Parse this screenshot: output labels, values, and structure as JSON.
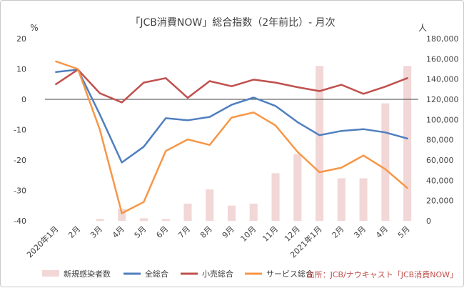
{
  "chart_data": {
    "type": "line",
    "title": "「JCB消費NOW」総合指数（2年前比）- 月次",
    "left_unit": "%",
    "right_unit": "人",
    "categories": [
      "2020年1月",
      "2月",
      "3月",
      "4月",
      "5月",
      "6月",
      "7月",
      "8月",
      "9月",
      "10月",
      "11月",
      "12月",
      "2021年1月",
      "2月",
      "3月",
      "4月",
      "5月"
    ],
    "ylim_left": [
      -40,
      20
    ],
    "yticks_left": [
      20,
      10,
      0,
      -10,
      -20,
      -30,
      -40
    ],
    "ylim_right": [
      0,
      180000
    ],
    "yticks_right": [
      "180,000",
      "160,000",
      "140,000",
      "120,000",
      "100,000",
      "80,000",
      "60,000",
      "40,000",
      "20,000",
      "0"
    ],
    "bars": {
      "name": "新規感染者数",
      "axis": "right",
      "color": "#f2d7d7",
      "values": [
        0,
        0,
        1800,
        12000,
        2500,
        1800,
        17000,
        31000,
        15000,
        17000,
        47000,
        66000,
        153000,
        42000,
        42000,
        116000,
        153000
      ]
    },
    "series": [
      {
        "name": "全総合",
        "color": "#4f7fbf",
        "values": [
          9.0,
          9.8,
          -5.0,
          -20.8,
          -15.6,
          -6.2,
          -6.9,
          -5.8,
          -1.8,
          0.6,
          -2.2,
          -7.5,
          -11.8,
          -10.4,
          -9.8,
          -10.9,
          -12.9
        ]
      },
      {
        "name": "小売総合",
        "color": "#c0504d",
        "values": [
          5.0,
          9.8,
          2.0,
          -1.0,
          5.5,
          7.0,
          0.5,
          6.0,
          4.3,
          6.5,
          5.5,
          4.0,
          2.7,
          4.8,
          1.8,
          4.2,
          7.0
        ]
      },
      {
        "name": "サービス総合",
        "color": "#f79646",
        "values": [
          12.5,
          10.0,
          -10.0,
          -37.5,
          -33.8,
          -17.0,
          -13.2,
          -15.0,
          -6.0,
          -4.3,
          -8.6,
          -17.3,
          -24.0,
          -22.5,
          -18.5,
          -23.0,
          -29.2
        ]
      }
    ],
    "source": "出所：JCB/ナウキャスト「JCB消費NOW」"
  }
}
